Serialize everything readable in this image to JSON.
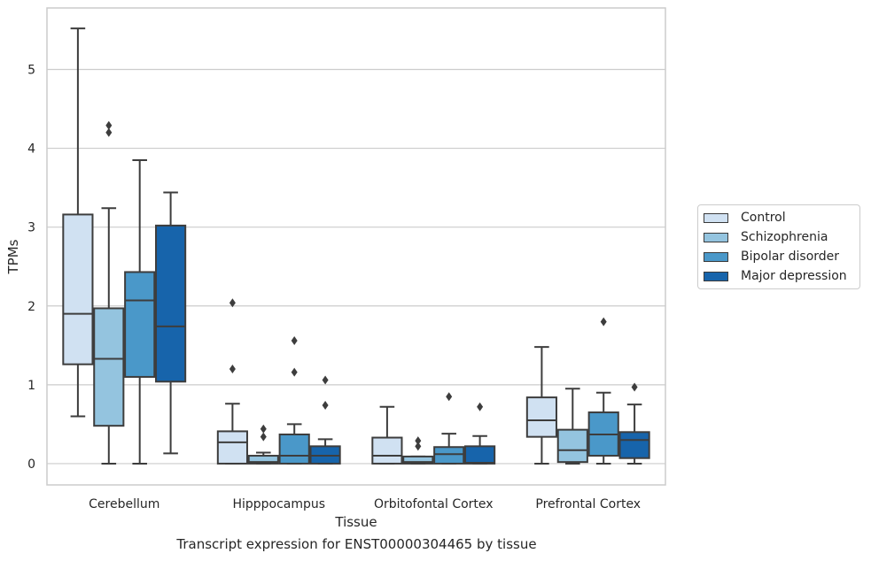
{
  "caption": "Transcript expression for ENST00000304465 by tissue",
  "colors": {
    "series": [
      "#d0e1f2",
      "#94c4df",
      "#4a98c9",
      "#1764ab"
    ],
    "grid": "#cccccc",
    "frame": "#cccccc",
    "box_line": "#3d3d3d"
  },
  "legend": {
    "position": "right",
    "items": [
      "Control",
      "Schizophrenia",
      "Bipolar disorder",
      "Major depression"
    ]
  },
  "chart_data": {
    "type": "box",
    "xlabel": "Tissue",
    "ylabel": "TPMs",
    "ylim": [
      -0.27,
      5.78
    ],
    "yticks": [
      0,
      1,
      2,
      3,
      4,
      5
    ],
    "grid": "horizontal",
    "categories": [
      "Cerebellum",
      "Hipppocampus",
      "Orbitofontal Cortex",
      "Prefrontal Cortex"
    ],
    "series": [
      {
        "name": "Control",
        "boxes": [
          {
            "whislo": 0.6,
            "q1": 1.26,
            "med": 1.9,
            "q3": 3.16,
            "whishi": 5.52,
            "fliers": []
          },
          {
            "whislo": 0.0,
            "q1": 0.0,
            "med": 0.27,
            "q3": 0.41,
            "whishi": 0.76,
            "fliers": [
              1.2,
              2.04
            ]
          },
          {
            "whislo": 0.0,
            "q1": 0.0,
            "med": 0.1,
            "q3": 0.33,
            "whishi": 0.72,
            "fliers": []
          },
          {
            "whislo": 0.0,
            "q1": 0.34,
            "med": 0.55,
            "q3": 0.84,
            "whishi": 1.48,
            "fliers": []
          }
        ]
      },
      {
        "name": "Schizophrenia",
        "boxes": [
          {
            "whislo": 0.0,
            "q1": 0.48,
            "med": 1.33,
            "q3": 1.97,
            "whishi": 3.24,
            "fliers": [
              4.2,
              4.29
            ]
          },
          {
            "whislo": 0.0,
            "q1": 0.0,
            "med": 0.02,
            "q3": 0.1,
            "whishi": 0.14,
            "fliers": [
              0.34,
              0.44
            ]
          },
          {
            "whislo": 0.0,
            "q1": 0.0,
            "med": 0.02,
            "q3": 0.09,
            "whishi": 0.09,
            "fliers": [
              0.22,
              0.29
            ]
          },
          {
            "whislo": 0.0,
            "q1": 0.02,
            "med": 0.17,
            "q3": 0.43,
            "whishi": 0.95,
            "fliers": []
          }
        ]
      },
      {
        "name": "Bipolar disorder",
        "boxes": [
          {
            "whislo": 0.0,
            "q1": 1.1,
            "med": 2.07,
            "q3": 2.43,
            "whishi": 3.85,
            "fliers": []
          },
          {
            "whislo": 0.0,
            "q1": 0.0,
            "med": 0.1,
            "q3": 0.37,
            "whishi": 0.5,
            "fliers": [
              1.16,
              1.56
            ]
          },
          {
            "whislo": 0.0,
            "q1": 0.0,
            "med": 0.12,
            "q3": 0.21,
            "whishi": 0.38,
            "fliers": [
              0.85
            ]
          },
          {
            "whislo": 0.0,
            "q1": 0.1,
            "med": 0.37,
            "q3": 0.65,
            "whishi": 0.9,
            "fliers": [
              1.8
            ]
          }
        ]
      },
      {
        "name": "Major depression",
        "boxes": [
          {
            "whislo": 0.13,
            "q1": 1.04,
            "med": 1.74,
            "q3": 3.02,
            "whishi": 3.44,
            "fliers": []
          },
          {
            "whislo": 0.0,
            "q1": 0.0,
            "med": 0.1,
            "q3": 0.22,
            "whishi": 0.31,
            "fliers": [
              0.74,
              1.06
            ]
          },
          {
            "whislo": 0.0,
            "q1": 0.0,
            "med": 0.01,
            "q3": 0.22,
            "whishi": 0.35,
            "fliers": [
              0.72
            ]
          },
          {
            "whislo": 0.0,
            "q1": 0.07,
            "med": 0.3,
            "q3": 0.4,
            "whishi": 0.75,
            "fliers": [
              0.97
            ]
          }
        ]
      }
    ]
  }
}
